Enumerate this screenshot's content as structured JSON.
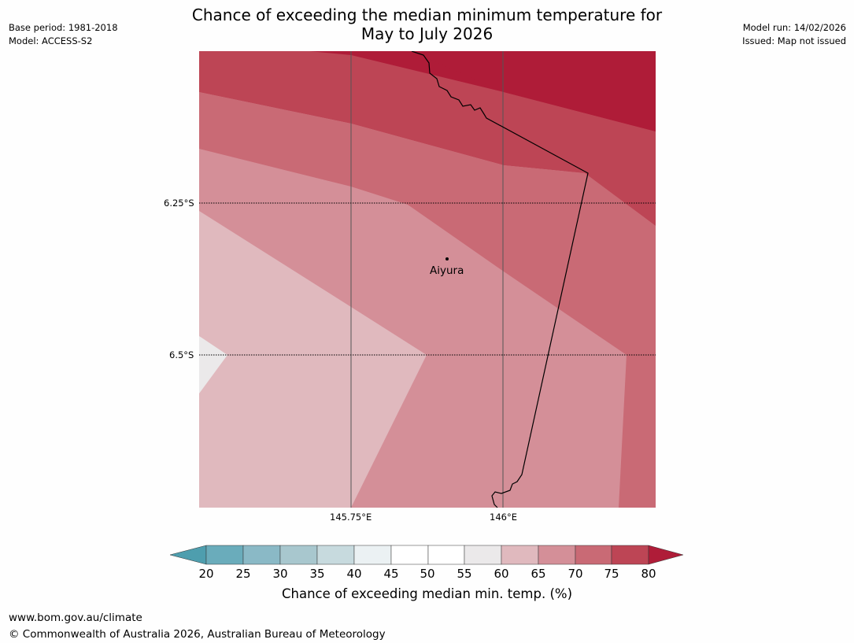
{
  "title_line1": "Chance of exceeding the median minimum temperature for",
  "title_line2": "May to July 2026",
  "base_period": "Base period: 1981-2018",
  "model": "Model: ACCESS-S2",
  "model_run": "Model run: 14/02/2026",
  "issued": "Issued: Map not issued",
  "lat_labels": [
    "6.25°S",
    "6.5°S"
  ],
  "lon_labels": [
    "145.75°E",
    "146°E"
  ],
  "place": "Aiyura",
  "colorbar": {
    "ticks": [
      "20",
      "25",
      "30",
      "35",
      "40",
      "45",
      "50",
      "55",
      "60",
      "65",
      "70",
      "75",
      "80"
    ],
    "label": "Chance of exceeding median min. temp. (%)",
    "colors": {
      "below20": "#4e9eae",
      "c20_25": "#6aacbb",
      "c25_30": "#8ab9c6",
      "c30_35": "#a8c7ce",
      "c35_40": "#c7dade",
      "c40_45": "#ebf1f3",
      "c45_50": "#ffffff",
      "c50_55": "#ffffff",
      "c55_60": "#ebe9ea",
      "c60_65": "#e0b9be",
      "c65_70": "#d48f98",
      "c70_75": "#c96a75",
      "c75_80": "#bd4555",
      "above80": "#af1c38"
    }
  },
  "footer_url": "www.bom.gov.au/climate",
  "footer_copyright": "© Commonwealth of Australia 2026, Australian Bureau of Meteorology"
}
